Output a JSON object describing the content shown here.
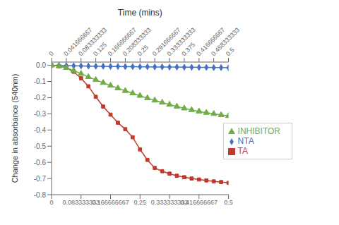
{
  "chart_data": {
    "type": "line",
    "title": "Time (mins)",
    "y_label": "Change in absorbance (540nm)",
    "x": [
      0,
      0.020833333,
      0.041666667,
      0.0625,
      0.083333333,
      0.104166667,
      0.125,
      0.145833333,
      0.166666667,
      0.1875,
      0.208333333,
      0.229166667,
      0.25,
      0.270833333,
      0.291666667,
      0.3125,
      0.333333333,
      0.354166667,
      0.375,
      0.395833333,
      0.416666667,
      0.4375,
      0.458333333,
      0.479166667,
      0.5
    ],
    "series": [
      {
        "name": "NTA",
        "color": "#4472C4",
        "marker": "diamond",
        "values": [
          0,
          -0.001,
          -0.002,
          -0.003,
          -0.004,
          -0.005,
          -0.006,
          -0.006,
          -0.007,
          -0.007,
          -0.008,
          -0.008,
          -0.009,
          -0.009,
          -0.01,
          -0.01,
          -0.011,
          -0.011,
          -0.012,
          -0.012,
          -0.013,
          -0.013,
          -0.014,
          -0.014,
          -0.015
        ]
      },
      {
        "name": "TA",
        "color": "#C0392B",
        "marker": "square",
        "values": [
          0,
          -0.005,
          -0.015,
          -0.04,
          -0.08,
          -0.13,
          -0.195,
          -0.255,
          -0.305,
          -0.355,
          -0.395,
          -0.445,
          -0.52,
          -0.585,
          -0.635,
          -0.655,
          -0.67,
          -0.683,
          -0.692,
          -0.7,
          -0.706,
          -0.712,
          -0.718,
          -0.722,
          -0.727
        ]
      },
      {
        "name": "INHIBITOR",
        "color": "#70AD47",
        "marker": "triangle",
        "values": [
          0,
          -0.005,
          -0.015,
          -0.033,
          -0.052,
          -0.072,
          -0.09,
          -0.108,
          -0.125,
          -0.142,
          -0.158,
          -0.173,
          -0.188,
          -0.203,
          -0.217,
          -0.23,
          -0.243,
          -0.255,
          -0.266,
          -0.276,
          -0.285,
          -0.293,
          -0.3,
          -0.307,
          -0.313
        ]
      }
    ],
    "xlim": [
      0,
      0.5
    ],
    "xticks": [
      0,
      0.083333333,
      0.166666667,
      0.25,
      0.333333333,
      0.416666667,
      0.5
    ],
    "x2lim": [
      0,
      0.5
    ],
    "x2ticks": [
      0,
      0.041666667,
      0.083333333,
      0.125,
      0.166666667,
      0.208333333,
      0.25,
      0.291666667,
      0.333333333,
      0.375,
      0.416666667,
      0.458333333,
      0.5
    ],
    "ylim": [
      -0.8,
      0.02
    ],
    "yticks": [
      {
        "value": 0,
        "label": "0.0"
      },
      -0.1,
      -0.2,
      -0.3,
      -0.4,
      -0.5,
      -0.6,
      -0.7,
      -0.8
    ],
    "legend": "right"
  }
}
